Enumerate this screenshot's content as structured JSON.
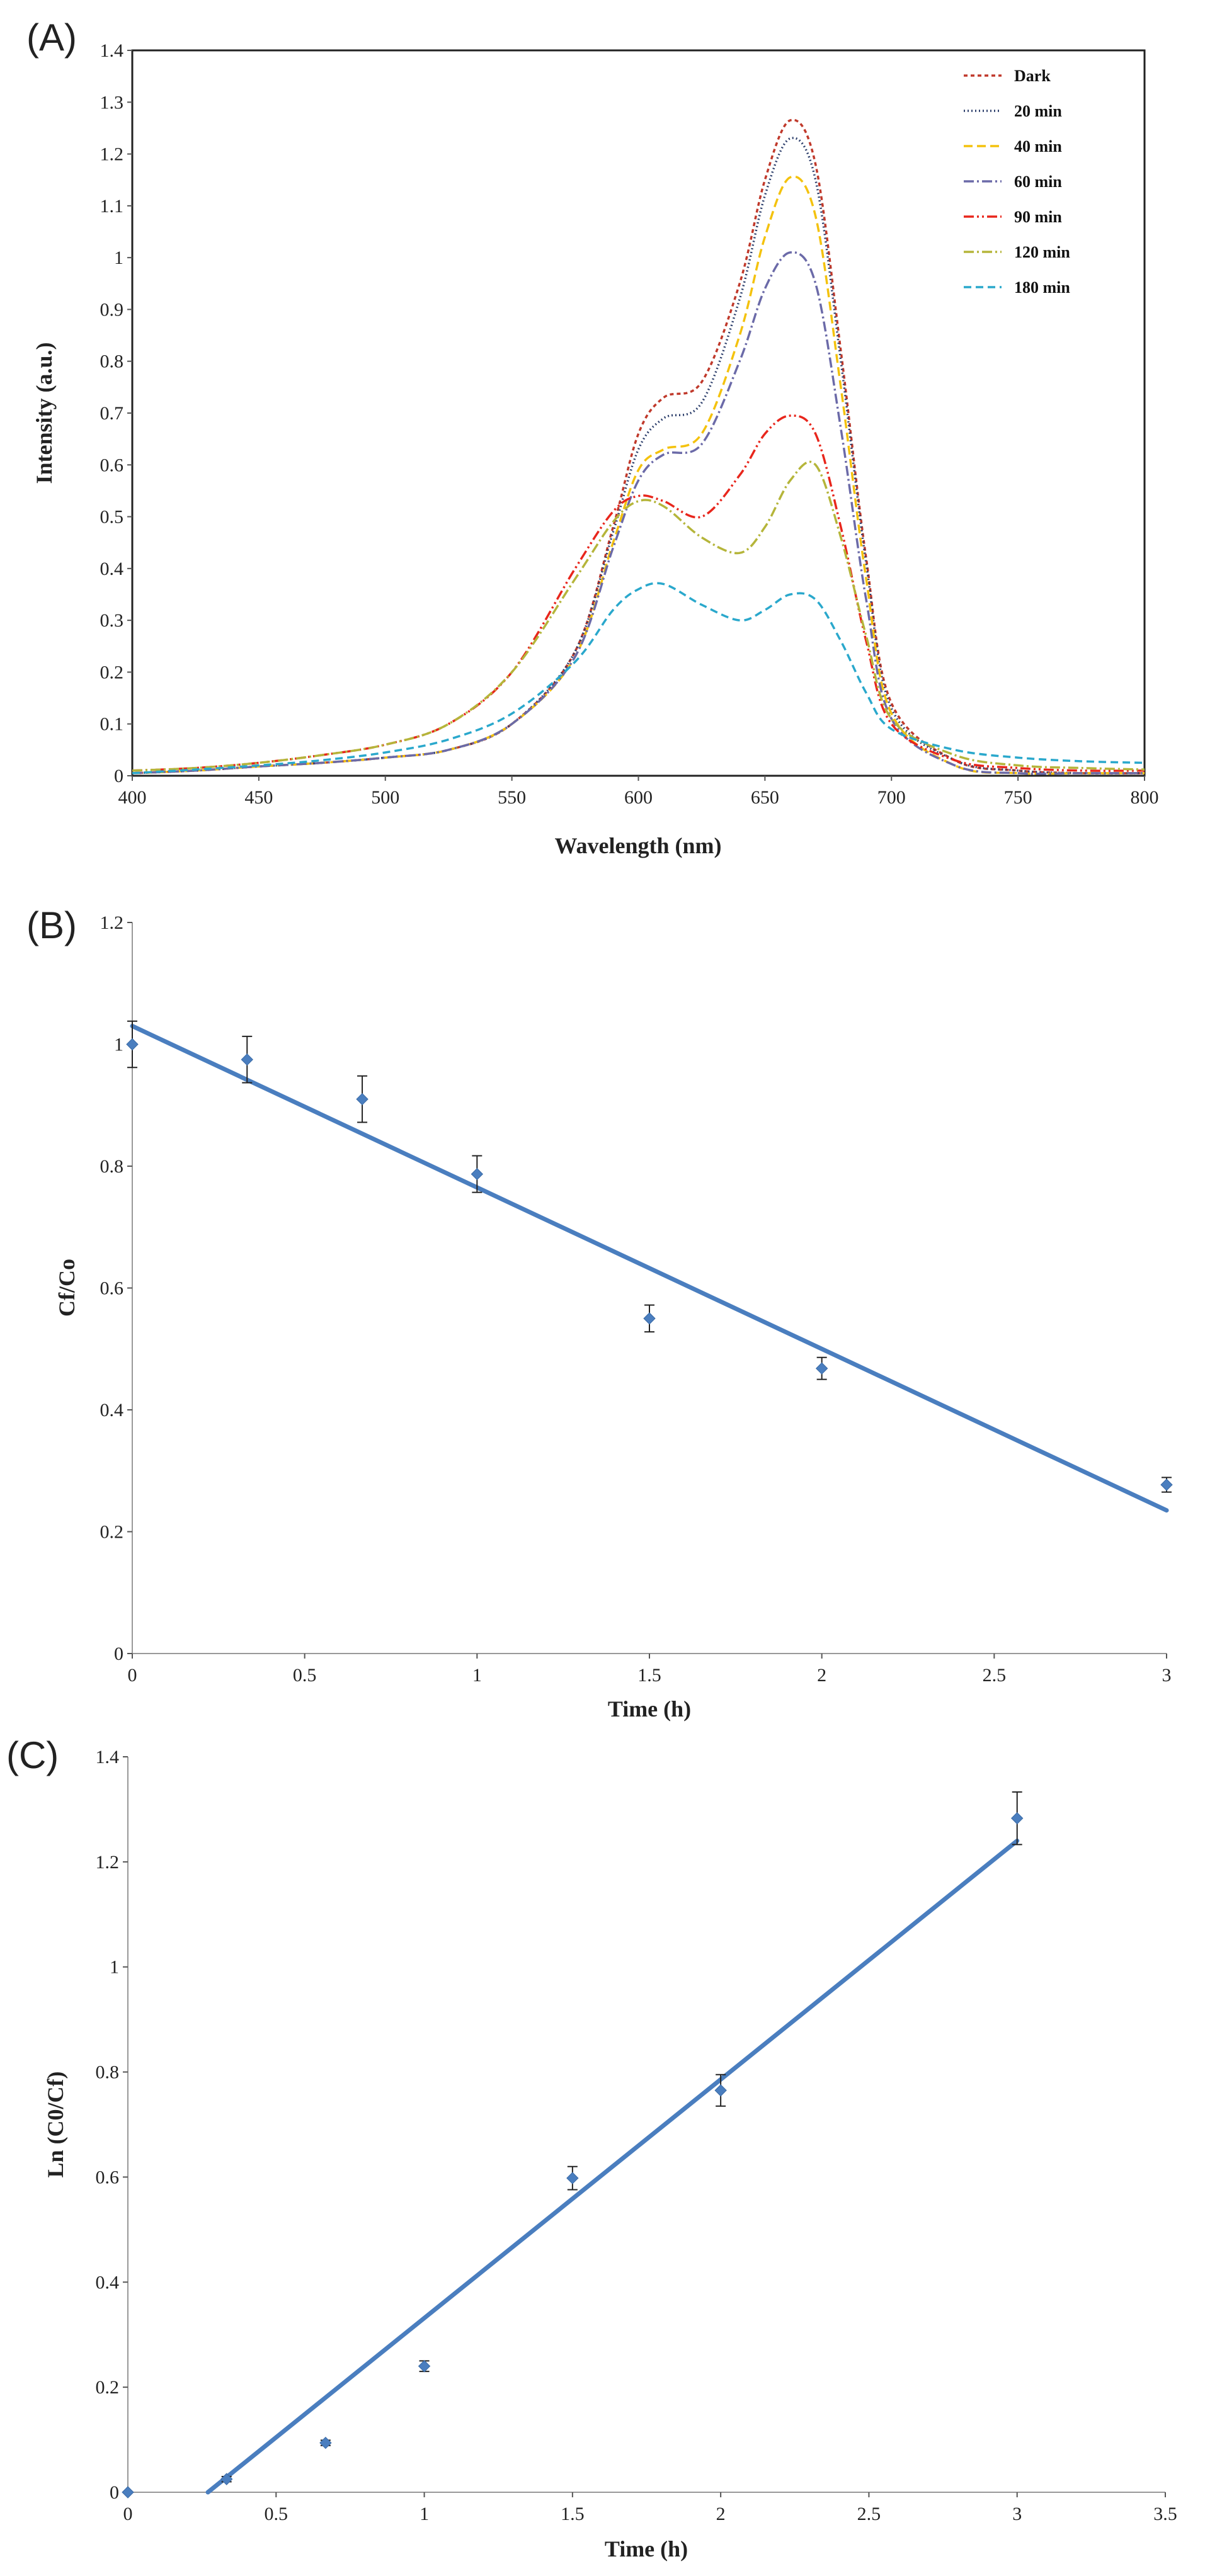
{
  "chart_data": [
    {
      "panel_label": "(A)",
      "type": "line",
      "xlabel": "Wavelength (nm)",
      "ylabel": "Intensity (a.u.)",
      "xlim": [
        400,
        800
      ],
      "ylim": [
        0,
        1.4
      ],
      "xticks": [
        "400",
        "450",
        "500",
        "550",
        "600",
        "650",
        "700",
        "750",
        "800"
      ],
      "yticks": [
        "0",
        "0.1",
        "0.2",
        "0.3",
        "0.4",
        "0.5",
        "0.6",
        "0.7",
        "0.8",
        "0.9",
        "1",
        "1.1",
        "1.2",
        "1.3",
        "1.4"
      ],
      "legend_position": "top-right",
      "x": [
        400,
        425,
        450,
        475,
        500,
        525,
        550,
        575,
        590,
        600,
        610,
        625,
        640,
        650,
        660,
        670,
        680,
        690,
        700,
        725,
        750,
        775,
        800
      ],
      "series": [
        {
          "name": "Dark",
          "color": "#c0392b",
          "dash": "6,5",
          "values": [
            0.005,
            0.01,
            0.018,
            0.025,
            0.035,
            0.05,
            0.1,
            0.24,
            0.48,
            0.66,
            0.73,
            0.76,
            0.95,
            1.15,
            1.265,
            1.18,
            0.82,
            0.42,
            0.14,
            0.03,
            0.01,
            0.005,
            0.005
          ]
        },
        {
          "name": "20 min",
          "color": "#2c3e6b",
          "dash": "2,4",
          "values": [
            0.005,
            0.01,
            0.018,
            0.025,
            0.035,
            0.05,
            0.1,
            0.24,
            0.47,
            0.63,
            0.69,
            0.72,
            0.92,
            1.12,
            1.23,
            1.15,
            0.8,
            0.41,
            0.13,
            0.03,
            0.01,
            0.005,
            0.005
          ]
        },
        {
          "name": "40 min",
          "color": "#f4c20d",
          "dash": "14,7",
          "values": [
            0.005,
            0.01,
            0.018,
            0.025,
            0.035,
            0.05,
            0.1,
            0.23,
            0.45,
            0.59,
            0.63,
            0.66,
            0.85,
            1.04,
            1.155,
            1.08,
            0.75,
            0.38,
            0.12,
            0.02,
            0.005,
            0.005,
            0.005
          ]
        },
        {
          "name": "60 min",
          "color": "#6b6aa8",
          "dash": "16,5,3,5",
          "values": [
            0.005,
            0.01,
            0.018,
            0.025,
            0.035,
            0.05,
            0.1,
            0.23,
            0.44,
            0.57,
            0.62,
            0.64,
            0.8,
            0.94,
            1.01,
            0.95,
            0.67,
            0.34,
            0.11,
            0.02,
            0.005,
            0.005,
            0.005
          ]
        },
        {
          "name": "90 min",
          "color": "#e8261c",
          "dash": "16,5,3,5,3,5",
          "values": [
            0.01,
            0.015,
            0.025,
            0.04,
            0.06,
            0.1,
            0.2,
            0.4,
            0.51,
            0.54,
            0.53,
            0.5,
            0.58,
            0.66,
            0.695,
            0.66,
            0.48,
            0.26,
            0.1,
            0.03,
            0.015,
            0.01,
            0.01
          ]
        },
        {
          "name": "120 min",
          "color": "#b5b53a",
          "dash": "16,5,3,5",
          "values": [
            0.01,
            0.015,
            0.025,
            0.04,
            0.06,
            0.1,
            0.2,
            0.38,
            0.49,
            0.53,
            0.52,
            0.46,
            0.43,
            0.48,
            0.57,
            0.6,
            0.46,
            0.27,
            0.11,
            0.04,
            0.02,
            0.015,
            0.012
          ]
        },
        {
          "name": "180 min",
          "color": "#2aa8cc",
          "dash": "12,7",
          "values": [
            0.005,
            0.012,
            0.02,
            0.03,
            0.045,
            0.07,
            0.12,
            0.22,
            0.32,
            0.36,
            0.37,
            0.33,
            0.3,
            0.32,
            0.35,
            0.34,
            0.26,
            0.16,
            0.09,
            0.05,
            0.035,
            0.028,
            0.025
          ]
        }
      ]
    },
    {
      "panel_label": "(B)",
      "type": "scatter",
      "xlabel": "Time (h)",
      "ylabel": "Cf/Co",
      "xlim": [
        0,
        3
      ],
      "ylim": [
        0,
        1.2
      ],
      "xticks": [
        "0",
        "0.5",
        "1",
        "1.5",
        "2",
        "2.5",
        "3"
      ],
      "yticks": [
        "0",
        "0.2",
        "0.4",
        "0.6",
        "0.8",
        "1",
        "1.2"
      ],
      "points": [
        {
          "x": 0,
          "y": 1.0,
          "err": 0.038
        },
        {
          "x": 0.333,
          "y": 0.975,
          "err": 0.038
        },
        {
          "x": 0.667,
          "y": 0.91,
          "err": 0.038
        },
        {
          "x": 1.0,
          "y": 0.787,
          "err": 0.03
        },
        {
          "x": 1.5,
          "y": 0.55,
          "err": 0.022
        },
        {
          "x": 2.0,
          "y": 0.468,
          "err": 0.018
        },
        {
          "x": 3.0,
          "y": 0.277,
          "err": 0.012
        }
      ],
      "fit_line": {
        "x": [
          0,
          3
        ],
        "y": [
          1.03,
          0.235
        ]
      },
      "marker_color": "#4a7ebf",
      "line_color": "#4a7ebf"
    },
    {
      "panel_label": "(C)",
      "type": "scatter",
      "xlabel": "Time (h)",
      "ylabel": "Ln (C0/Cf)",
      "xlim": [
        0,
        3.5
      ],
      "ylim": [
        0,
        1.4
      ],
      "xticks": [
        "0",
        "0.5",
        "1",
        "1.5",
        "2",
        "2.5",
        "3",
        "3.5"
      ],
      "yticks": [
        "0",
        "0.2",
        "0.4",
        "0.6",
        "0.8",
        "1",
        "1.2",
        "1.4"
      ],
      "points": [
        {
          "x": 0,
          "y": 0.0,
          "err": 0
        },
        {
          "x": 0.333,
          "y": 0.025,
          "err": 0.005
        },
        {
          "x": 0.667,
          "y": 0.094,
          "err": 0.005
        },
        {
          "x": 1.0,
          "y": 0.24,
          "err": 0.01
        },
        {
          "x": 1.5,
          "y": 0.598,
          "err": 0.022
        },
        {
          "x": 2.0,
          "y": 0.765,
          "err": 0.03
        },
        {
          "x": 3.0,
          "y": 1.283,
          "err": 0.05
        }
      ],
      "fit_line": {
        "x": [
          0.27,
          3.0
        ],
        "y": [
          0.0,
          1.24
        ]
      },
      "marker_color": "#4a7ebf",
      "line_color": "#4a7ebf"
    }
  ]
}
